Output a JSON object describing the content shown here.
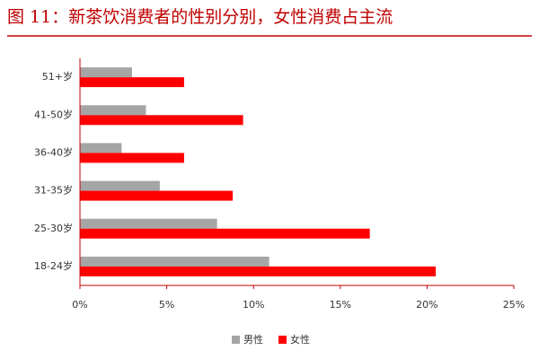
{
  "chart_data": {
    "type": "bar",
    "orientation": "horizontal",
    "title": "图 11：新茶饮消费者的性别分别，女性消费占主流",
    "categories": [
      "51+岁",
      "41-50岁",
      "36-40岁",
      "31-35岁",
      "25-30岁",
      "18-24岁"
    ],
    "series": [
      {
        "name": "男性",
        "color": "#a5a5a5",
        "values": [
          3.0,
          3.8,
          2.4,
          4.6,
          7.9,
          10.9
        ]
      },
      {
        "name": "女性",
        "color": "#ff0000",
        "values": [
          6.0,
          9.4,
          6.0,
          8.8,
          16.7,
          20.5
        ]
      }
    ],
    "xlim": [
      0,
      25
    ],
    "xticks": [
      {
        "value": 0,
        "label": "0%"
      },
      {
        "value": 5,
        "label": "5%"
      },
      {
        "value": 10,
        "label": "10%"
      },
      {
        "value": 15,
        "label": "15%"
      },
      {
        "value": 20,
        "label": "20%"
      },
      {
        "value": 25,
        "label": "25%"
      }
    ],
    "legend": "bottom"
  }
}
